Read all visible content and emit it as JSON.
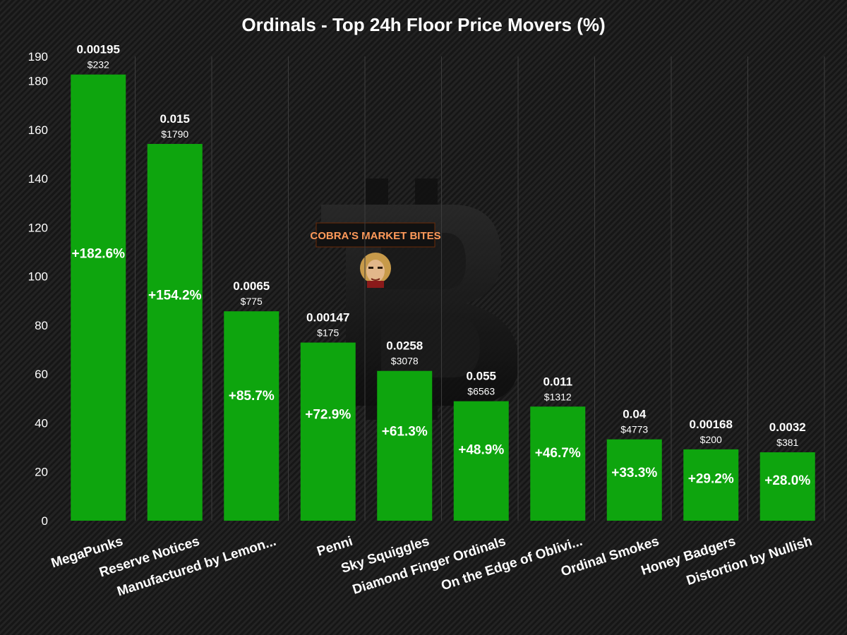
{
  "chart_data": {
    "type": "bar",
    "title": "Ordinals - Top 24h Floor Price Movers (%)",
    "xlabel": "",
    "ylabel": "",
    "ylim": [
      0,
      190
    ],
    "yticks": [
      0,
      20,
      40,
      60,
      80,
      100,
      120,
      140,
      160,
      180,
      190
    ],
    "grid": "vertical",
    "categories": [
      "MegaPunks",
      "Reserve Notices",
      "Manufactured by Lemon...",
      "Penni",
      "Sky Squiggles",
      "Diamond Finger Ordinals",
      "On the Edge of Oblivi...",
      "Ordinal Smokes",
      "Honey Badgers",
      "Distortion by Nullish"
    ],
    "values": [
      182.6,
      154.2,
      85.7,
      72.9,
      61.3,
      48.9,
      46.7,
      33.3,
      29.2,
      28.0
    ],
    "value_labels": [
      "+182.6%",
      "+154.2%",
      "+85.7%",
      "+72.9%",
      "+61.3%",
      "+48.9%",
      "+46.7%",
      "+33.3%",
      "+29.2%",
      "+28.0%"
    ],
    "floor_btc": [
      "0.00195",
      "0.015",
      "0.0065",
      "0.00147",
      "0.0258",
      "0.055",
      "0.011",
      "0.04",
      "0.00168",
      "0.0032"
    ],
    "floor_usd": [
      "$232",
      "$1790",
      "$775",
      "$175",
      "$3078",
      "$6563",
      "$1312",
      "$4773",
      "$200",
      "$381"
    ],
    "bar_color": "#0ea50e",
    "annotation_text_color": "#ffffff"
  },
  "watermark": {
    "brand": "COBRA'S MARKET BITES",
    "symbol": "bitcoin-logo"
  }
}
